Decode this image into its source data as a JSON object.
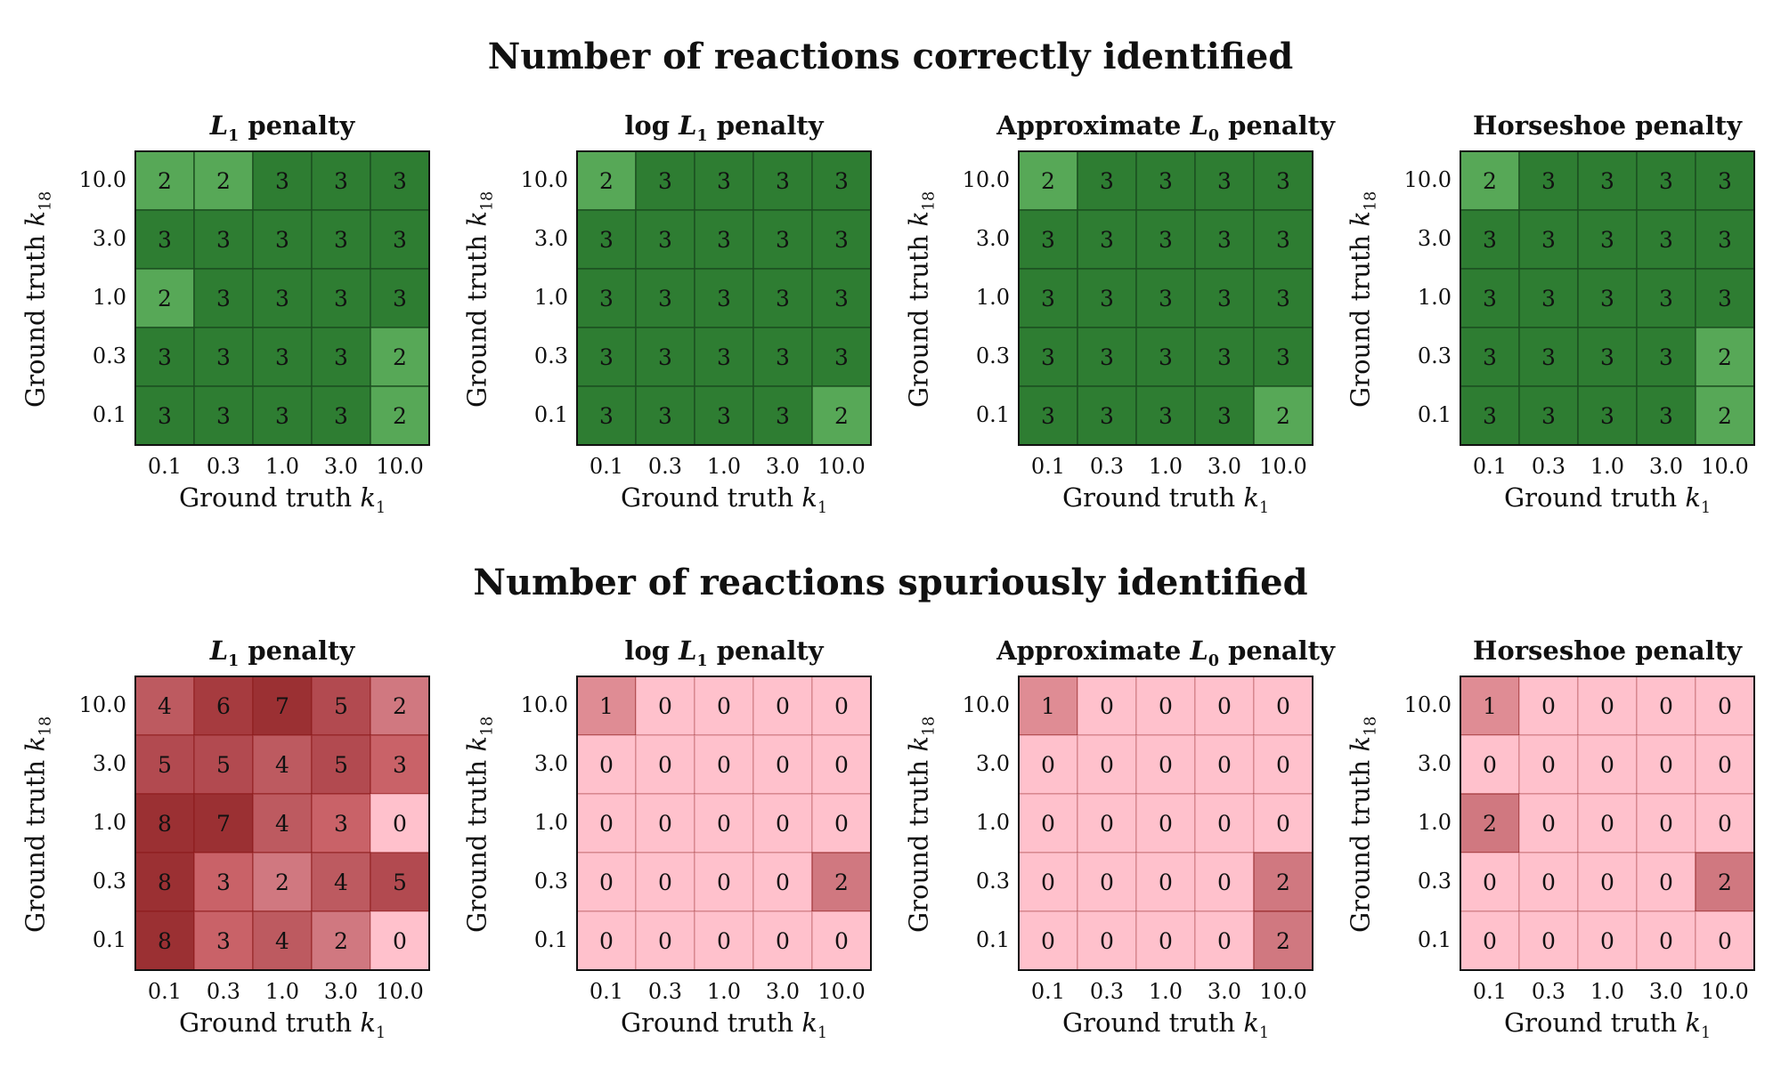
{
  "figure": {
    "top_title": "Number of reactions correctly identified",
    "bottom_title": "Number of reactions spuriously identified"
  },
  "colors": {
    "green_dark": "#2e7d32",
    "green_light": "#57a857",
    "green_edge": "#1b4d1f",
    "red_scale": [
      "#ffc1cc",
      "#df8c94",
      "#d07880",
      "#c96268",
      "#bd5a60",
      "#b24a50",
      "#a63b3f",
      "#9b3033"
    ],
    "red_edge": "#8c1a1a"
  },
  "chart_data": [
    {
      "type": "heatmap",
      "title": "L1 penalty",
      "row": "top",
      "xlabel": "Ground truth k1",
      "ylabel": "Ground truth k18",
      "x": [
        "0.1",
        "0.3",
        "1.0",
        "3.0",
        "10.0"
      ],
      "y": [
        "10.0",
        "3.0",
        "1.0",
        "0.3",
        "0.1"
      ],
      "values": [
        [
          2,
          2,
          3,
          3,
          3
        ],
        [
          3,
          3,
          3,
          3,
          3
        ],
        [
          2,
          3,
          3,
          3,
          3
        ],
        [
          3,
          3,
          3,
          3,
          2
        ],
        [
          3,
          3,
          3,
          3,
          2
        ]
      ]
    },
    {
      "type": "heatmap",
      "title": "log L1 penalty",
      "row": "top",
      "xlabel": "Ground truth k1",
      "ylabel": "Ground truth k18",
      "x": [
        "0.1",
        "0.3",
        "1.0",
        "3.0",
        "10.0"
      ],
      "y": [
        "10.0",
        "3.0",
        "1.0",
        "0.3",
        "0.1"
      ],
      "values": [
        [
          2,
          3,
          3,
          3,
          3
        ],
        [
          3,
          3,
          3,
          3,
          3
        ],
        [
          3,
          3,
          3,
          3,
          3
        ],
        [
          3,
          3,
          3,
          3,
          3
        ],
        [
          3,
          3,
          3,
          3,
          2
        ]
      ]
    },
    {
      "type": "heatmap",
      "title": "Approximate L0 penalty",
      "row": "top",
      "xlabel": "Ground truth k1",
      "ylabel": "Ground truth k18",
      "x": [
        "0.1",
        "0.3",
        "1.0",
        "3.0",
        "10.0"
      ],
      "y": [
        "10.0",
        "3.0",
        "1.0",
        "0.3",
        "0.1"
      ],
      "values": [
        [
          2,
          3,
          3,
          3,
          3
        ],
        [
          3,
          3,
          3,
          3,
          3
        ],
        [
          3,
          3,
          3,
          3,
          3
        ],
        [
          3,
          3,
          3,
          3,
          3
        ],
        [
          3,
          3,
          3,
          3,
          2
        ]
      ]
    },
    {
      "type": "heatmap",
      "title": "Horseshoe penalty",
      "row": "top",
      "xlabel": "Ground truth k1",
      "ylabel": "Ground truth k18",
      "x": [
        "0.1",
        "0.3",
        "1.0",
        "3.0",
        "10.0"
      ],
      "y": [
        "10.0",
        "3.0",
        "1.0",
        "0.3",
        "0.1"
      ],
      "values": [
        [
          2,
          3,
          3,
          3,
          3
        ],
        [
          3,
          3,
          3,
          3,
          3
        ],
        [
          3,
          3,
          3,
          3,
          3
        ],
        [
          3,
          3,
          3,
          3,
          2
        ],
        [
          3,
          3,
          3,
          3,
          2
        ]
      ]
    },
    {
      "type": "heatmap",
      "title": "L1 penalty",
      "row": "bottom",
      "xlabel": "Ground truth k1",
      "ylabel": "Ground truth k18",
      "x": [
        "0.1",
        "0.3",
        "1.0",
        "3.0",
        "10.0"
      ],
      "y": [
        "10.0",
        "3.0",
        "1.0",
        "0.3",
        "0.1"
      ],
      "values": [
        [
          4,
          6,
          7,
          5,
          2
        ],
        [
          5,
          5,
          4,
          5,
          3
        ],
        [
          8,
          7,
          4,
          3,
          0
        ],
        [
          8,
          3,
          2,
          4,
          5
        ],
        [
          8,
          3,
          4,
          2,
          0
        ]
      ]
    },
    {
      "type": "heatmap",
      "title": "log L1 penalty",
      "row": "bottom",
      "xlabel": "Ground truth k1",
      "ylabel": "Ground truth k18",
      "x": [
        "0.1",
        "0.3",
        "1.0",
        "3.0",
        "10.0"
      ],
      "y": [
        "10.0",
        "3.0",
        "1.0",
        "0.3",
        "0.1"
      ],
      "values": [
        [
          1,
          0,
          0,
          0,
          0
        ],
        [
          0,
          0,
          0,
          0,
          0
        ],
        [
          0,
          0,
          0,
          0,
          0
        ],
        [
          0,
          0,
          0,
          0,
          2
        ],
        [
          0,
          0,
          0,
          0,
          0
        ]
      ]
    },
    {
      "type": "heatmap",
      "title": "Approximate L0 penalty",
      "row": "bottom",
      "xlabel": "Ground truth k1",
      "ylabel": "Ground truth k18",
      "x": [
        "0.1",
        "0.3",
        "1.0",
        "3.0",
        "10.0"
      ],
      "y": [
        "10.0",
        "3.0",
        "1.0",
        "0.3",
        "0.1"
      ],
      "values": [
        [
          1,
          0,
          0,
          0,
          0
        ],
        [
          0,
          0,
          0,
          0,
          0
        ],
        [
          0,
          0,
          0,
          0,
          0
        ],
        [
          0,
          0,
          0,
          0,
          2
        ],
        [
          0,
          0,
          0,
          0,
          2
        ]
      ]
    },
    {
      "type": "heatmap",
      "title": "Horseshoe penalty",
      "row": "bottom",
      "xlabel": "Ground truth k1",
      "ylabel": "Ground truth k18",
      "x": [
        "0.1",
        "0.3",
        "1.0",
        "3.0",
        "10.0"
      ],
      "y": [
        "10.0",
        "3.0",
        "1.0",
        "0.3",
        "0.1"
      ],
      "values": [
        [
          1,
          0,
          0,
          0,
          0
        ],
        [
          0,
          0,
          0,
          0,
          0
        ],
        [
          2,
          0,
          0,
          0,
          0
        ],
        [
          0,
          0,
          0,
          0,
          2
        ],
        [
          0,
          0,
          0,
          0,
          0
        ]
      ]
    }
  ]
}
